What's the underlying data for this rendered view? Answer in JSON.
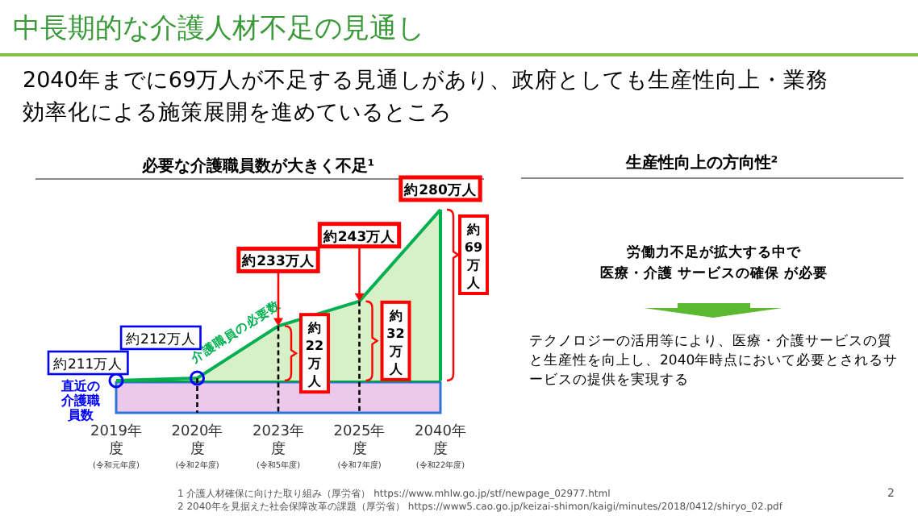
{
  "chart_data": [
    {
      "type": "other",
      "title": "中長期的な介護人材不足の見通し",
      "subtitle": "2040年までに69万人が不足する見通しがあり、政府としても生産性向上・業務効率化による施策展開を進めているところ"
    },
    {
      "type": "area",
      "title": "必要な介護職員数が大きく不足¹",
      "categories": [
        "2019年度 (令和元年度)",
        "2020年度 (令和2年度)",
        "2023年度 (令和5年度)",
        "2025年度 (令和7年度)",
        "2040年度 (令和22年度)"
      ],
      "series": [
        {
          "name": "介護職員の必要数",
          "color": "#00b050",
          "values": [
            211,
            212,
            233,
            243,
            280
          ],
          "colors": [
            "#0000ff",
            "#0000ff",
            "#ff0000",
            "#ff0000",
            "#ff0000"
          ],
          "value_labels": [
            "約211万人",
            "約212万人",
            "約233万人",
            "約243万人",
            "約280万人"
          ]
        }
      ],
      "ref_lines": [
        {
          "axis": "y",
          "value": 211,
          "label": "直近の介護職員数",
          "color": "#00a040"
        }
      ],
      "annotations": [
        {
          "text": "約22万人",
          "x": "2023年度 (令和5年度)",
          "y": 233
        },
        {
          "text": "約32万人",
          "x": "2025年度 (令和7年度)",
          "y": 243
        },
        {
          "text": "約69万人",
          "x": "2040年度 (令和22年度)",
          "y": 280
        }
      ]
    },
    {
      "type": "other",
      "title": "生産性向上の方向性²",
      "annotations": [
        "労働力不足が拡大する中で",
        "医療・介護 サービスの確保 が必要",
        "テクノロジーの活用等により、医療・介護サービスの質と生産性を向上し、2040年時点において必要とされるサービスの提供を実現する",
        "1 介護人材確保に向けた取り組み（厚労省） https://www.mhlw.go.jp/stf/newpage_02977.html",
        "2 2040年を見据えた社会保障改革の課題（厚労省） https://www5.cao.go.jp/keizai-shimon/kaigi/minutes/2018/0412/shiryo_02.pdf",
        "2"
      ]
    }
  ]
}
